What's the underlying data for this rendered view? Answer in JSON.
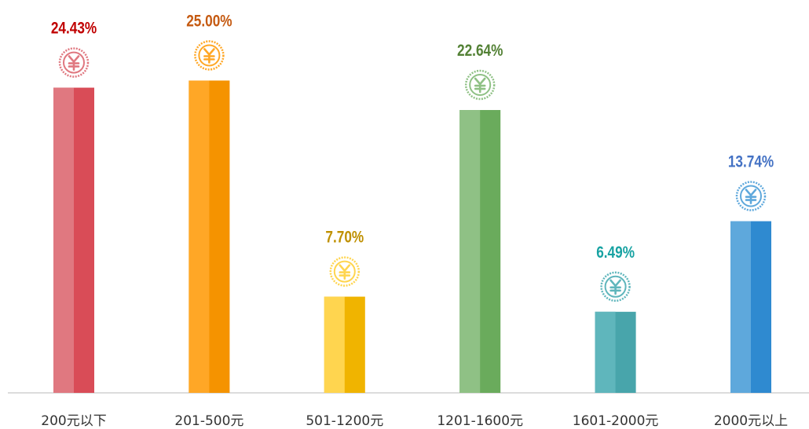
{
  "chart_data": {
    "type": "bar",
    "categories": [
      "200元以下",
      "201-500元",
      "501-1200元",
      "1201-1600元",
      "1601-2000元",
      "2000元以上"
    ],
    "values": [
      24.43,
      25.0,
      7.7,
      22.64,
      6.49,
      13.74
    ],
    "value_labels": [
      "24.43%",
      "25.00%",
      "7.70%",
      "22.64%",
      "6.49%",
      "13.74%"
    ],
    "colors": [
      "#d94c57",
      "#f59300",
      "#f0b400",
      "#6aab5c",
      "#48a5ab",
      "#2f8ad0"
    ],
    "light_colors": [
      "#e07880",
      "#ffa726",
      "#ffd54f",
      "#8fc185",
      "#5fb6bc",
      "#5ea8dc"
    ],
    "label_colors": [
      "#c00000",
      "#c55a11",
      "#bf9000",
      "#538135",
      "#17a2a2",
      "#4472c4"
    ]
  }
}
